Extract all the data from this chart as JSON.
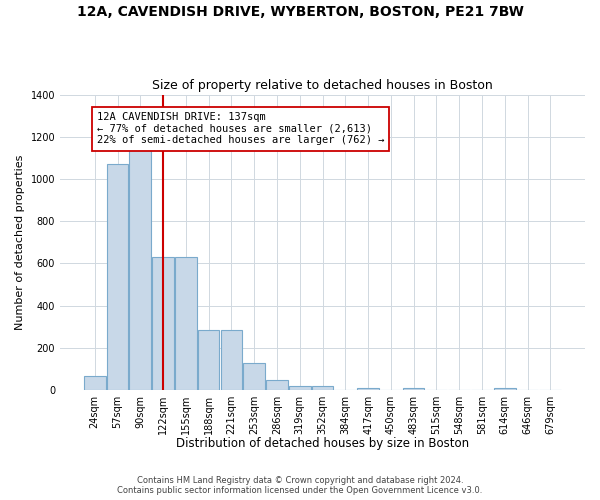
{
  "title": "12A, CAVENDISH DRIVE, WYBERTON, BOSTON, PE21 7BW",
  "subtitle": "Size of property relative to detached houses in Boston",
  "xlabel": "Distribution of detached houses by size in Boston",
  "ylabel": "Number of detached properties",
  "bin_labels": [
    "24sqm",
    "57sqm",
    "90sqm",
    "122sqm",
    "155sqm",
    "188sqm",
    "221sqm",
    "253sqm",
    "286sqm",
    "319sqm",
    "352sqm",
    "384sqm",
    "417sqm",
    "450sqm",
    "483sqm",
    "515sqm",
    "548sqm",
    "581sqm",
    "614sqm",
    "646sqm",
    "679sqm"
  ],
  "bar_heights": [
    65,
    1070,
    1160,
    630,
    630,
    285,
    285,
    130,
    45,
    18,
    18,
    0,
    10,
    0,
    10,
    0,
    0,
    0,
    10,
    0,
    0
  ],
  "bar_color": "#c8d8e8",
  "bar_edge_color": "#7aaacc",
  "property_line_color": "#cc0000",
  "annotation_text": "12A CAVENDISH DRIVE: 137sqm\n← 77% of detached houses are smaller (2,613)\n22% of semi-detached houses are larger (762) →",
  "annotation_box_color": "#ffffff",
  "annotation_box_edge_color": "#cc0000",
  "ylim": [
    0,
    1400
  ],
  "yticks": [
    0,
    200,
    400,
    600,
    800,
    1000,
    1200,
    1400
  ],
  "footer_line1": "Contains HM Land Registry data © Crown copyright and database right 2024.",
  "footer_line2": "Contains public sector information licensed under the Open Government Licence v3.0.",
  "background_color": "#ffffff",
  "plot_background_color": "#ffffff",
  "grid_color": "#d0d8e0"
}
